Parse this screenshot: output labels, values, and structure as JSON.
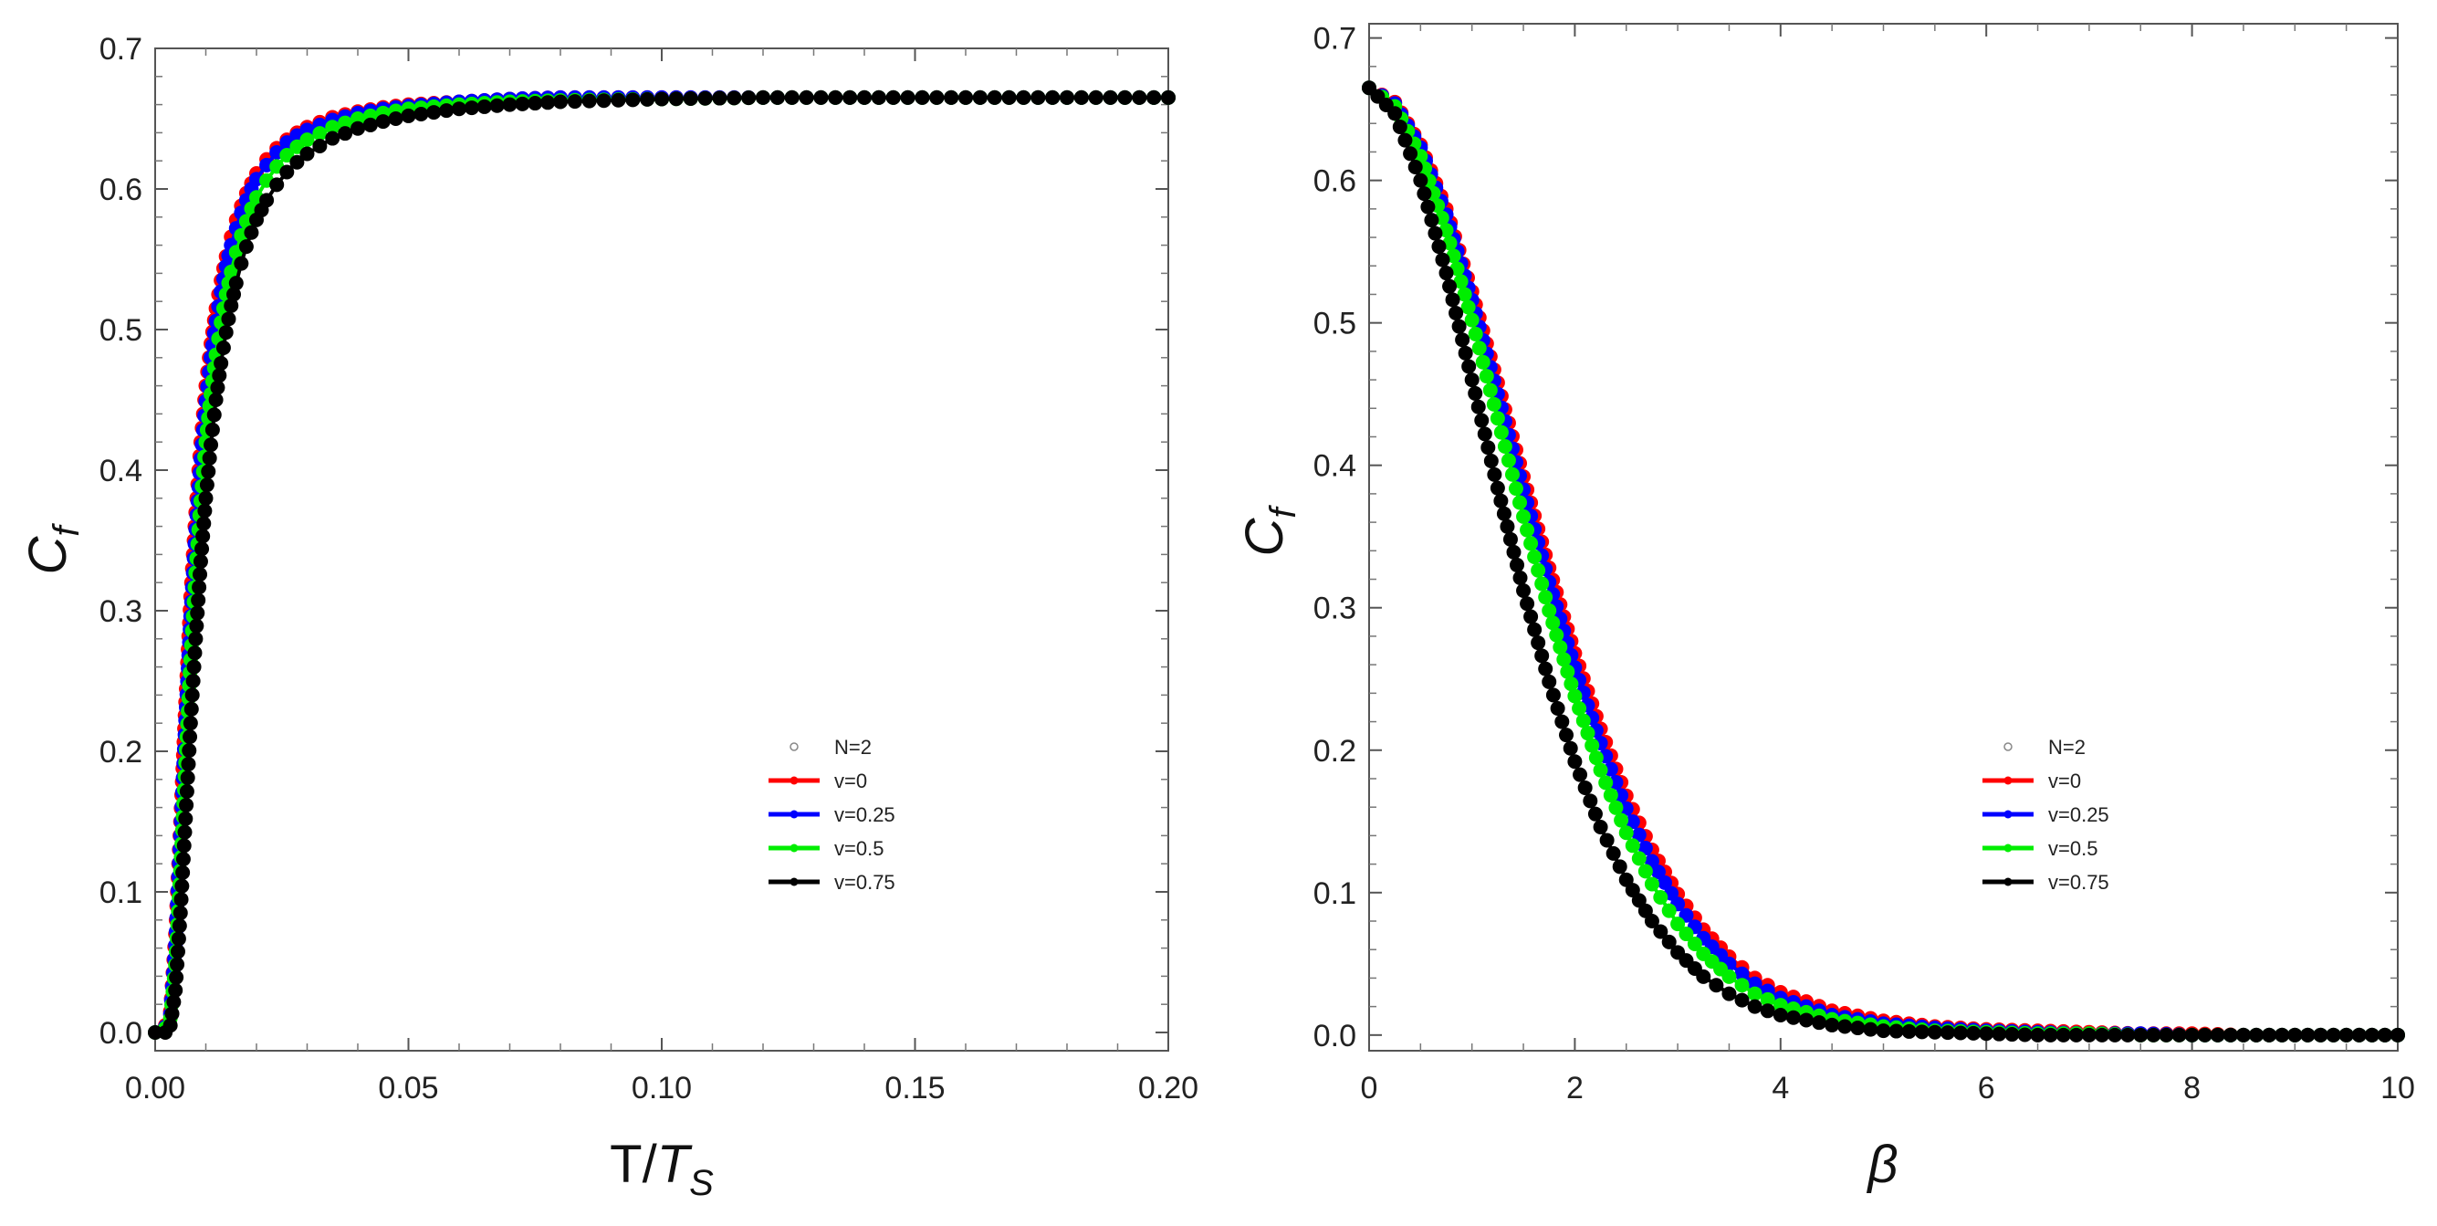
{
  "chart_data": [
    {
      "type": "scatter",
      "id": "left",
      "xlabel": "T/T_S",
      "xlabel_main": "T/",
      "xlabel_var": "T",
      "xlabel_sub": "S",
      "ylabel": "C_f",
      "ylabel_main": "C",
      "ylabel_sub": "f",
      "xlim": [
        0,
        0.2
      ],
      "ylim": [
        -0.013,
        0.7
      ],
      "xticks": [
        0,
        0.05,
        0.1,
        0.15,
        0.2
      ],
      "xtick_labels": [
        "0.00",
        "0.05",
        "0.10",
        "0.15",
        "0.20"
      ],
      "yticks": [
        0,
        0.1,
        0.2,
        0.3,
        0.4,
        0.5,
        0.6,
        0.7
      ],
      "ytick_labels": [
        "0.0",
        "0.1",
        "0.2",
        "0.3",
        "0.4",
        "0.5",
        "0.6",
        "0.7"
      ],
      "legend_position": "center-right",
      "legend": [
        "N=2",
        "v=0",
        "v=0.25",
        "v=0.5",
        "v=0.75"
      ],
      "series": [
        {
          "name": "v=0",
          "color": "#ff0000",
          "x": [
            0.0,
            0.002,
            0.003,
            0.004,
            0.005,
            0.006,
            0.007,
            0.008,
            0.009,
            0.01,
            0.011,
            0.012,
            0.013,
            0.014,
            0.015,
            0.016,
            0.017,
            0.018,
            0.019,
            0.02,
            0.022,
            0.024,
            0.026,
            0.028,
            0.03,
            0.035,
            0.04,
            0.045,
            0.05,
            0.06,
            0.07,
            0.08,
            0.1,
            0.12,
            0.14,
            0.16,
            0.18,
            0.2
          ],
          "y": [
            0.0,
            0.005,
            0.015,
            0.07,
            0.15,
            0.235,
            0.31,
            0.37,
            0.42,
            0.46,
            0.49,
            0.515,
            0.535,
            0.552,
            0.566,
            0.578,
            0.588,
            0.597,
            0.604,
            0.611,
            0.621,
            0.629,
            0.635,
            0.64,
            0.644,
            0.651,
            0.655,
            0.658,
            0.66,
            0.662,
            0.664,
            0.665,
            0.665,
            0.665,
            0.665,
            0.665,
            0.665,
            0.665
          ]
        },
        {
          "name": "v=0.25",
          "color": "#0000ff",
          "x": [
            0.0,
            0.002,
            0.003,
            0.004,
            0.005,
            0.006,
            0.007,
            0.008,
            0.009,
            0.01,
            0.011,
            0.012,
            0.013,
            0.014,
            0.015,
            0.016,
            0.017,
            0.018,
            0.019,
            0.02,
            0.022,
            0.024,
            0.026,
            0.028,
            0.03,
            0.035,
            0.04,
            0.045,
            0.05,
            0.06,
            0.07,
            0.08,
            0.1,
            0.12,
            0.14,
            0.16,
            0.18,
            0.2
          ],
          "y": [
            0.0,
            0.004,
            0.013,
            0.062,
            0.14,
            0.222,
            0.296,
            0.358,
            0.408,
            0.449,
            0.48,
            0.506,
            0.527,
            0.545,
            0.56,
            0.572,
            0.583,
            0.592,
            0.6,
            0.607,
            0.617,
            0.626,
            0.633,
            0.638,
            0.642,
            0.649,
            0.654,
            0.657,
            0.659,
            0.662,
            0.664,
            0.665,
            0.665,
            0.665,
            0.665,
            0.665,
            0.665,
            0.665
          ]
        },
        {
          "name": "v=0.5",
          "color": "#00ee00",
          "x": [
            0.0,
            0.002,
            0.003,
            0.004,
            0.005,
            0.006,
            0.007,
            0.008,
            0.009,
            0.01,
            0.011,
            0.012,
            0.013,
            0.014,
            0.015,
            0.016,
            0.017,
            0.018,
            0.019,
            0.02,
            0.022,
            0.024,
            0.026,
            0.028,
            0.03,
            0.035,
            0.04,
            0.045,
            0.05,
            0.06,
            0.07,
            0.08,
            0.1,
            0.12,
            0.14,
            0.16,
            0.18,
            0.2
          ],
          "y": [
            0.0,
            0.003,
            0.01,
            0.048,
            0.115,
            0.192,
            0.265,
            0.327,
            0.378,
            0.42,
            0.454,
            0.482,
            0.505,
            0.525,
            0.541,
            0.555,
            0.567,
            0.577,
            0.586,
            0.594,
            0.606,
            0.616,
            0.624,
            0.63,
            0.635,
            0.644,
            0.65,
            0.654,
            0.657,
            0.66,
            0.662,
            0.663,
            0.664,
            0.665,
            0.665,
            0.665,
            0.665,
            0.665
          ]
        },
        {
          "name": "v=0.75",
          "color": "#000000",
          "x": [
            0.0,
            0.002,
            0.003,
            0.004,
            0.005,
            0.006,
            0.007,
            0.008,
            0.009,
            0.01,
            0.011,
            0.012,
            0.013,
            0.014,
            0.015,
            0.016,
            0.017,
            0.018,
            0.019,
            0.02,
            0.022,
            0.024,
            0.026,
            0.028,
            0.03,
            0.035,
            0.04,
            0.045,
            0.05,
            0.06,
            0.07,
            0.08,
            0.1,
            0.12,
            0.14,
            0.16,
            0.18,
            0.2
          ],
          "y": [
            0.0,
            0.0,
            0.005,
            0.03,
            0.085,
            0.152,
            0.22,
            0.28,
            0.335,
            0.38,
            0.418,
            0.45,
            0.476,
            0.498,
            0.517,
            0.533,
            0.547,
            0.559,
            0.569,
            0.578,
            0.592,
            0.603,
            0.612,
            0.619,
            0.625,
            0.636,
            0.643,
            0.648,
            0.652,
            0.657,
            0.66,
            0.662,
            0.664,
            0.665,
            0.665,
            0.665,
            0.665,
            0.665
          ]
        }
      ]
    },
    {
      "type": "scatter",
      "id": "right",
      "xlabel": "β",
      "ylabel": "C_f",
      "ylabel_main": "C",
      "ylabel_sub": "f",
      "xlim": [
        0,
        10
      ],
      "ylim": [
        -0.011,
        0.71
      ],
      "xticks": [
        0,
        2,
        4,
        6,
        8,
        10
      ],
      "xtick_labels": [
        "0",
        "2",
        "4",
        "6",
        "8",
        "10"
      ],
      "yticks": [
        0,
        0.1,
        0.2,
        0.3,
        0.4,
        0.5,
        0.6,
        0.7
      ],
      "ytick_labels": [
        "0.0",
        "0.1",
        "0.2",
        "0.3",
        "0.4",
        "0.5",
        "0.6",
        "0.7"
      ],
      "legend_position": "center-right",
      "legend": [
        "N=2",
        "v=0",
        "v=0.25",
        "v=0.5",
        "v=0.75"
      ],
      "series": [
        {
          "name": "v=0",
          "color": "#ff0000",
          "x": [
            0.0,
            0.25,
            0.5,
            0.75,
            1.0,
            1.25,
            1.5,
            1.75,
            2.0,
            2.25,
            2.5,
            2.75,
            3.0,
            3.25,
            3.5,
            3.75,
            4.0,
            4.5,
            5.0,
            5.5,
            6.0,
            6.5,
            7.0,
            7.5,
            8.0,
            8.5,
            9.0,
            9.5,
            10.0
          ],
          "y": [
            0.665,
            0.655,
            0.625,
            0.58,
            0.522,
            0.458,
            0.392,
            0.328,
            0.268,
            0.215,
            0.168,
            0.13,
            0.099,
            0.074,
            0.055,
            0.04,
            0.03,
            0.017,
            0.01,
            0.006,
            0.004,
            0.003,
            0.002,
            0.001,
            0.001,
            0.0,
            0.0,
            0.0,
            0.0
          ]
        },
        {
          "name": "v=0.25",
          "color": "#0000ff",
          "x": [
            0.0,
            0.25,
            0.5,
            0.75,
            1.0,
            1.25,
            1.5,
            1.75,
            2.0,
            2.25,
            2.5,
            2.75,
            3.0,
            3.25,
            3.5,
            3.75,
            4.0,
            4.5,
            5.0,
            5.5,
            6.0,
            6.5,
            7.0,
            7.5,
            8.0,
            8.5,
            9.0,
            9.5,
            10.0
          ],
          "y": [
            0.665,
            0.654,
            0.623,
            0.576,
            0.516,
            0.45,
            0.383,
            0.318,
            0.258,
            0.205,
            0.159,
            0.122,
            0.092,
            0.068,
            0.05,
            0.036,
            0.026,
            0.014,
            0.008,
            0.005,
            0.003,
            0.002,
            0.001,
            0.001,
            0.0,
            0.0,
            0.0,
            0.0,
            0.0
          ]
        },
        {
          "name": "v=0.5",
          "color": "#00ee00",
          "x": [
            0.0,
            0.25,
            0.5,
            0.75,
            1.0,
            1.25,
            1.5,
            1.75,
            2.0,
            2.25,
            2.5,
            2.75,
            3.0,
            3.25,
            3.5,
            3.75,
            4.0,
            4.5,
            5.0,
            5.5,
            6.0,
            6.5,
            7.0,
            7.5,
            8.0,
            8.5,
            9.0,
            9.5,
            10.0
          ],
          "y": [
            0.665,
            0.652,
            0.617,
            0.565,
            0.502,
            0.433,
            0.364,
            0.298,
            0.238,
            0.186,
            0.142,
            0.106,
            0.078,
            0.057,
            0.041,
            0.029,
            0.021,
            0.011,
            0.006,
            0.003,
            0.002,
            0.001,
            0.001,
            0.0,
            0.0,
            0.0,
            0.0,
            0.0,
            0.0
          ]
        },
        {
          "name": "v=0.75",
          "color": "#000000",
          "x": [
            0.0,
            0.25,
            0.5,
            0.75,
            1.0,
            1.25,
            1.5,
            1.75,
            2.0,
            2.25,
            2.5,
            2.75,
            3.0,
            3.25,
            3.5,
            3.75,
            4.0,
            4.5,
            5.0,
            5.5,
            6.0,
            6.5,
            7.0,
            7.5,
            8.0,
            8.5,
            9.0,
            9.5,
            10.0
          ],
          "y": [
            0.665,
            0.647,
            0.6,
            0.535,
            0.46,
            0.384,
            0.312,
            0.248,
            0.192,
            0.146,
            0.109,
            0.08,
            0.058,
            0.041,
            0.029,
            0.02,
            0.014,
            0.007,
            0.003,
            0.002,
            0.001,
            0.0,
            0.0,
            0.0,
            0.0,
            0.0,
            0.0,
            0.0,
            0.0
          ]
        }
      ]
    }
  ]
}
